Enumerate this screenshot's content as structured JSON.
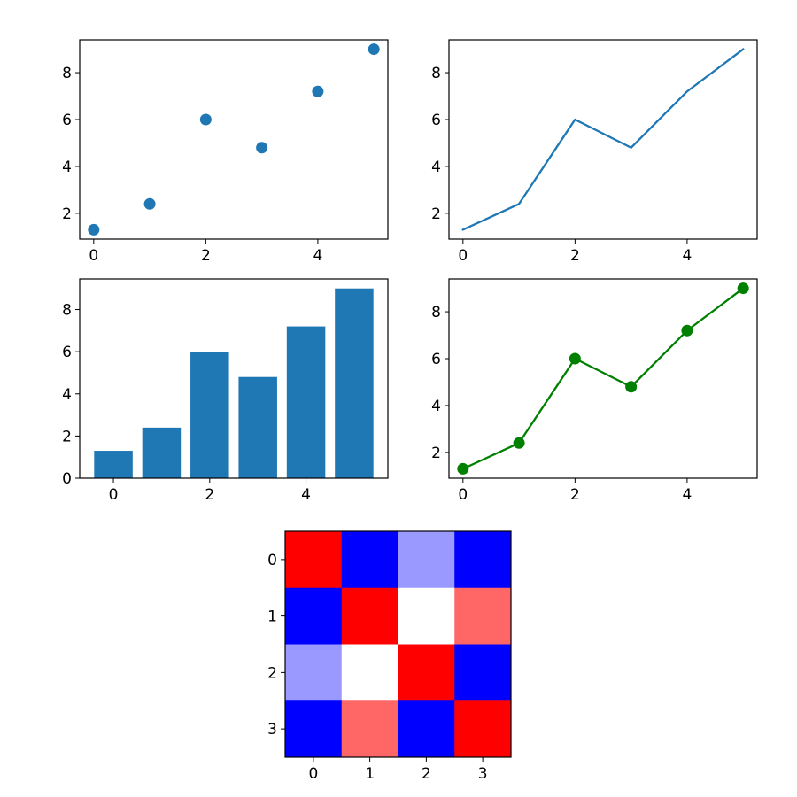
{
  "chart_data": [
    {
      "type": "scatter",
      "x": [
        0,
        1,
        2,
        3,
        4,
        5
      ],
      "y": [
        1.3,
        2.4,
        6.0,
        4.8,
        7.2,
        9.0
      ],
      "xlim": [
        -0.25,
        5.25
      ],
      "ylim": [
        0.9,
        9.4
      ],
      "xticks": [
        "0",
        "2",
        "4"
      ],
      "yticks": [
        "2",
        "4",
        "6",
        "8"
      ],
      "color": "#1f77b4",
      "grid": false
    },
    {
      "type": "line",
      "x": [
        0,
        1,
        2,
        3,
        4,
        5
      ],
      "y": [
        1.3,
        2.4,
        6.0,
        4.8,
        7.2,
        9.0
      ],
      "xlim": [
        -0.25,
        5.25
      ],
      "ylim": [
        0.9,
        9.4
      ],
      "xticks": [
        "0",
        "2",
        "4"
      ],
      "yticks": [
        "2",
        "4",
        "6",
        "8"
      ],
      "color": "#1f77b4",
      "grid": false
    },
    {
      "type": "bar",
      "categories": [
        0,
        1,
        2,
        3,
        4,
        5
      ],
      "values": [
        1.3,
        2.4,
        6.0,
        4.8,
        7.2,
        9.0
      ],
      "xlim": [
        -0.7,
        5.7
      ],
      "ylim": [
        0,
        9.45
      ],
      "xticks": [
        "0",
        "2",
        "4"
      ],
      "yticks": [
        "0",
        "2",
        "4",
        "6",
        "8"
      ],
      "color": "#1f77b4",
      "grid": false
    },
    {
      "type": "line",
      "markers": true,
      "x": [
        0,
        1,
        2,
        3,
        4,
        5
      ],
      "y": [
        1.3,
        2.4,
        6.0,
        4.8,
        7.2,
        9.0
      ],
      "xlim": [
        -0.25,
        5.25
      ],
      "ylim": [
        0.9,
        9.4
      ],
      "xticks": [
        "0",
        "2",
        "4"
      ],
      "yticks": [
        "2",
        "4",
        "6",
        "8"
      ],
      "color": "#008000",
      "grid": false
    },
    {
      "type": "heatmap",
      "rows": [
        "0",
        "1",
        "2",
        "3"
      ],
      "cols": [
        "0",
        "1",
        "2",
        "3"
      ],
      "values": [
        [
          1.0,
          -1.0,
          -0.4,
          -1.0
        ],
        [
          -1.0,
          1.0,
          0.0,
          0.6
        ],
        [
          -0.4,
          0.0,
          1.0,
          -1.0
        ],
        [
          -1.0,
          0.6,
          -1.0,
          1.0
        ]
      ],
      "vmin": -1,
      "vmax": 1,
      "colormap": "bwr"
    }
  ]
}
